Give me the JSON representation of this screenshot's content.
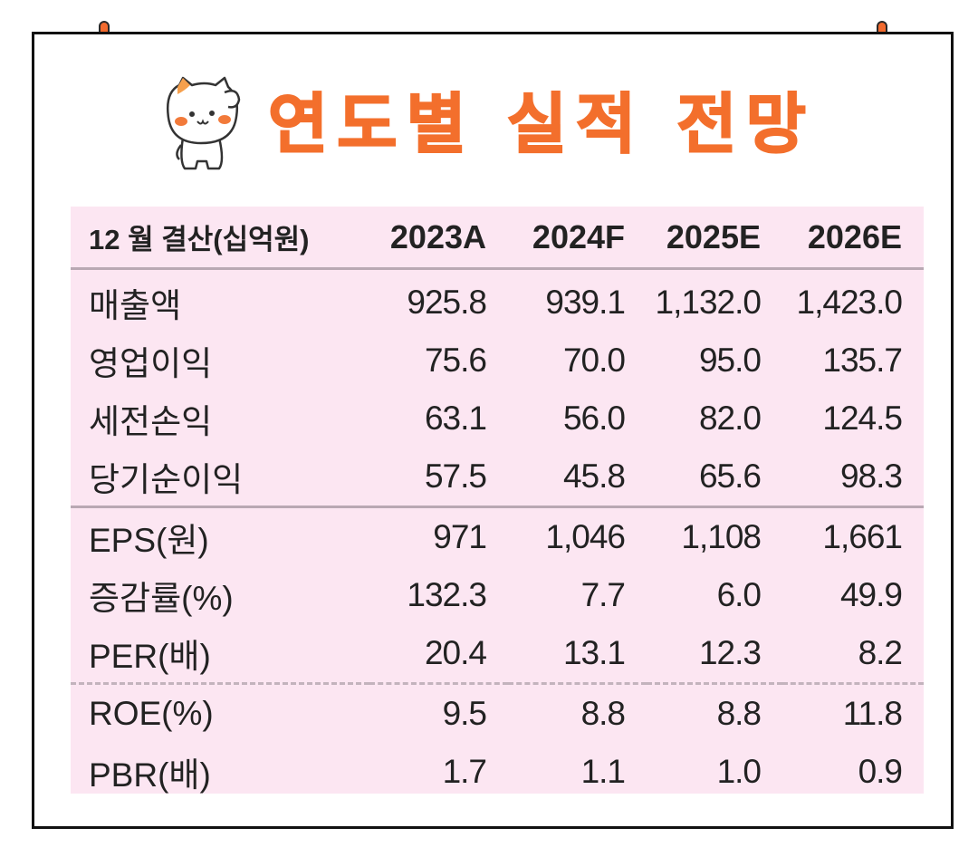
{
  "title": "연도별 실적 전망",
  "colors": {
    "accent": "#f36f2c",
    "table_bg": "#fce6f2",
    "divider": "#b9a8b3",
    "border": "#111111"
  },
  "icons": [
    "pushpin-icon",
    "cat-mascot-icon"
  ],
  "table": {
    "header": [
      "12 월 결산(십억원)",
      "2023A",
      "2024F",
      "2025E",
      "2026E"
    ],
    "groups": [
      {
        "rows": [
          {
            "label": "매출액",
            "values": [
              "925.8",
              "939.1",
              "1,132.0",
              "1,423.0"
            ]
          },
          {
            "label": "영업이익",
            "values": [
              "75.6",
              "70.0",
              "95.0",
              "135.7"
            ]
          },
          {
            "label": "세전손익",
            "values": [
              "63.1",
              "56.0",
              "82.0",
              "124.5"
            ]
          },
          {
            "label": "당기순이익",
            "values": [
              "57.5",
              "45.8",
              "65.6",
              "98.3"
            ]
          }
        ]
      },
      {
        "rows": [
          {
            "label": "EPS(원)",
            "values": [
              "971",
              "1,046",
              "1,108",
              "1,661"
            ]
          },
          {
            "label": "증감률(%)",
            "values": [
              "132.3",
              "7.7",
              "6.0",
              "49.9"
            ]
          },
          {
            "label": "PER(배)",
            "values": [
              "20.4",
              "13.1",
              "12.3",
              "8.2"
            ]
          }
        ]
      },
      {
        "rows": [
          {
            "label": "ROE(%)",
            "values": [
              "9.5",
              "8.8",
              "8.8",
              "11.8"
            ]
          },
          {
            "label": "PBR(배)",
            "values": [
              "1.7",
              "1.1",
              "1.0",
              "0.9"
            ]
          }
        ]
      }
    ]
  }
}
